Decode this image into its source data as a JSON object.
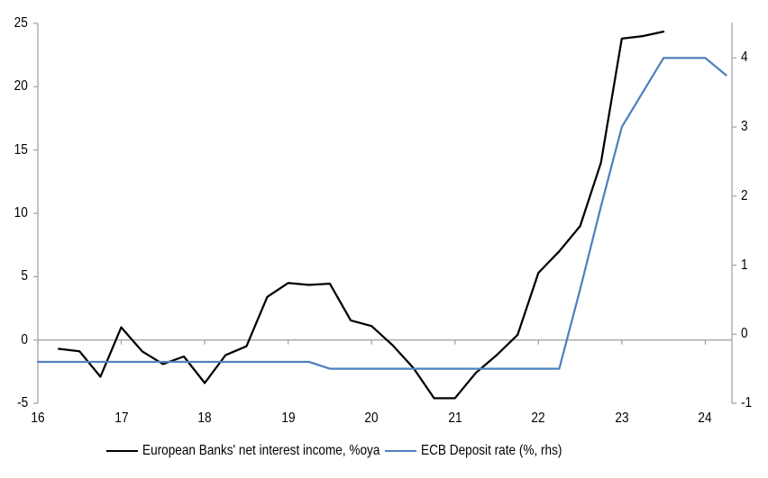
{
  "chart_data": {
    "type": "line",
    "title": "",
    "x_axis": {
      "ticks": [
        16,
        17,
        18,
        19,
        20,
        21,
        22,
        23,
        24
      ],
      "range": [
        16,
        24.32
      ]
    },
    "left_axis": {
      "ticks": [
        -5,
        0,
        5,
        10,
        15,
        20,
        25
      ],
      "range": [
        -5,
        25
      ]
    },
    "right_axis": {
      "ticks": [
        -1,
        0,
        1,
        2,
        3,
        4
      ],
      "range": [
        -1,
        4.5
      ]
    },
    "grid": "zero-line-only",
    "legend_position": "bottom",
    "style": {
      "axis_color": "#a6a6a6",
      "axis_width": 1.3,
      "series_width": 2.25,
      "background": "#ffffff"
    },
    "series": [
      {
        "name": "European Banks' net interest income, %oya",
        "axis": "left",
        "color": "#000000",
        "x": [
          16.25,
          16.5,
          16.75,
          17.0,
          17.25,
          17.5,
          17.75,
          18.0,
          18.25,
          18.5,
          18.75,
          19.0,
          19.25,
          19.5,
          19.75,
          20.0,
          20.25,
          20.5,
          20.75,
          21.0,
          21.25,
          21.5,
          21.75,
          22.0,
          22.25,
          22.5,
          22.75,
          23.0,
          23.25,
          23.5
        ],
        "values": [
          -0.7,
          -0.9,
          -2.9,
          1.0,
          -0.9,
          -1.9,
          -1.3,
          -3.4,
          -1.2,
          -0.5,
          3.4,
          4.5,
          4.35,
          4.45,
          1.55,
          1.1,
          -0.4,
          -2.2,
          -4.6,
          -4.6,
          -2.6,
          -1.2,
          0.4,
          5.3,
          7.0,
          9.0,
          14.0,
          23.8,
          24.0,
          24.35
        ]
      },
      {
        "name": "ECB Deposit rate (%, rhs)",
        "axis": "right",
        "color": "#4f81bd",
        "x": [
          16.0,
          16.25,
          16.5,
          16.75,
          17.0,
          17.25,
          17.5,
          17.75,
          18.0,
          18.25,
          18.5,
          18.75,
          19.0,
          19.25,
          19.5,
          19.75,
          20.0,
          20.25,
          20.5,
          20.75,
          21.0,
          21.25,
          21.5,
          21.75,
          22.0,
          22.25,
          22.5,
          22.75,
          23.0,
          23.25,
          23.5,
          23.75,
          24.0,
          24.25
        ],
        "values": [
          -0.4,
          -0.4,
          -0.4,
          -0.4,
          -0.4,
          -0.4,
          -0.4,
          -0.4,
          -0.4,
          -0.4,
          -0.4,
          -0.4,
          -0.4,
          -0.4,
          -0.5,
          -0.5,
          -0.5,
          -0.5,
          -0.5,
          -0.5,
          -0.5,
          -0.5,
          -0.5,
          -0.5,
          -0.5,
          -0.5,
          0.65,
          1.85,
          3.0,
          3.5,
          4.0,
          4.0,
          4.0,
          3.75
        ]
      }
    ]
  },
  "legend": {
    "items": [
      {
        "label": "European Banks' net interest income, %oya",
        "color": "#000000"
      },
      {
        "label": "ECB Deposit rate (%, rhs)",
        "color": "#4f81bd"
      }
    ]
  }
}
